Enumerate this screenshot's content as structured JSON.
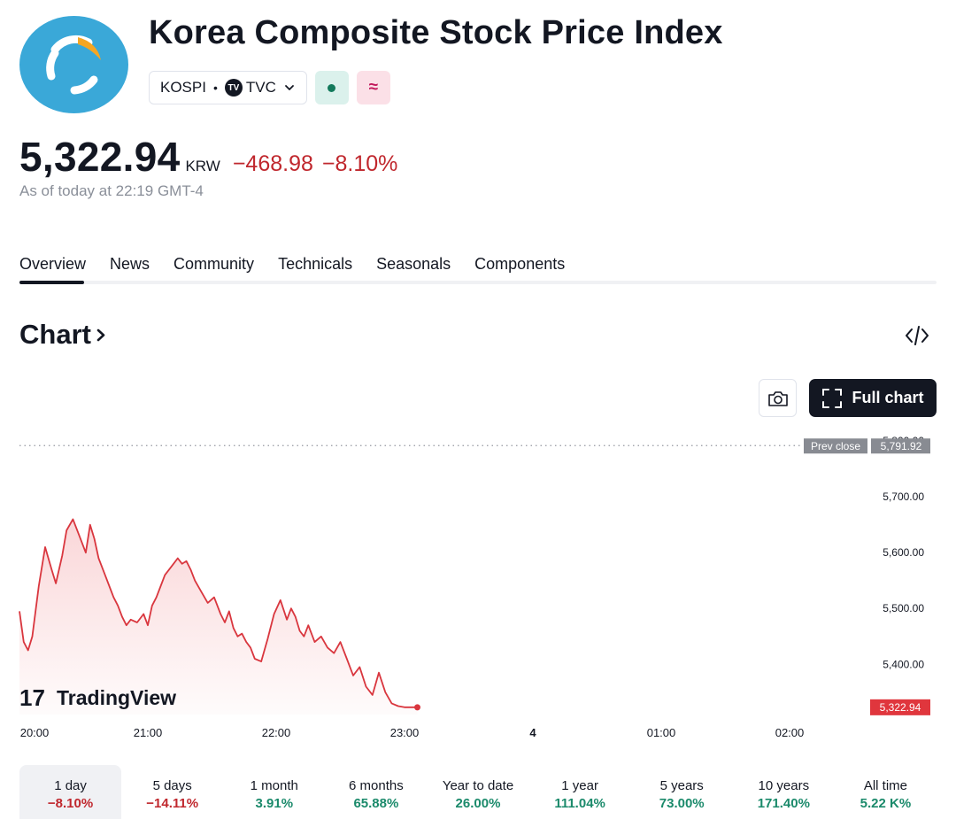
{
  "header": {
    "title": "Korea Composite Stock Price Index",
    "symbol": "KOSPI",
    "dot": "•",
    "source": "TVC",
    "tv_badge": "TV",
    "status_pink_glyph": "≈"
  },
  "quote": {
    "price": "5,322.94",
    "currency": "KRW",
    "change": "−468.98",
    "change_pct": "−8.10%",
    "as_of": "As of today at 22:19 GMT-4"
  },
  "tabs": [
    {
      "label": "Overview",
      "active": true
    },
    {
      "label": "News"
    },
    {
      "label": "Community"
    },
    {
      "label": "Technicals"
    },
    {
      "label": "Seasonals"
    },
    {
      "label": "Components"
    }
  ],
  "chart_section": {
    "title": "Chart",
    "full_chart_label": "Full chart",
    "watermark": "TradingView",
    "watermark_mark": "17"
  },
  "colors": {
    "down": "#c0272d",
    "up": "#1b8a6b",
    "line": "#d9363e",
    "logo": "#3aa8d8",
    "logo_accent": "#f5a623"
  },
  "chart_data": {
    "type": "area",
    "xlabel": "",
    "ylabel": "",
    "x_ticks": [
      "20:00",
      "21:00",
      "22:00",
      "23:00",
      "4",
      "01:00",
      "02:00"
    ],
    "y_ticks": [
      "5,400.00",
      "5,500.00",
      "5,600.00",
      "5,700.00",
      "5,800.00"
    ],
    "ylim": [
      5310,
      5805
    ],
    "prev_close_label": "Prev close",
    "prev_close": 5791.92,
    "prev_close_text": "5,791.92",
    "last_value": 5322.94,
    "last_value_text": "5,322.94",
    "series": [
      {
        "x": [
          0,
          2,
          4,
          6,
          9,
          12,
          15,
          17,
          20,
          22,
          25,
          28,
          31,
          33,
          35,
          37,
          40,
          42,
          44,
          46,
          48,
          50,
          52,
          55,
          58,
          60,
          62,
          64,
          66,
          68,
          70,
          72,
          74,
          76,
          78,
          80,
          82,
          85,
          88,
          91,
          94,
          96,
          98,
          100,
          102,
          104,
          106,
          108,
          110,
          113,
          116,
          119,
          122,
          125,
          127,
          129,
          131,
          133,
          135,
          138,
          141,
          144,
          147,
          150,
          153,
          156,
          159,
          162,
          165,
          168,
          171,
          174,
          177,
          180,
          183,
          186
        ],
        "values": [
          5495,
          5440,
          5425,
          5450,
          5540,
          5610,
          5570,
          5545,
          5595,
          5640,
          5660,
          5630,
          5600,
          5650,
          5625,
          5590,
          5560,
          5540,
          5520,
          5505,
          5485,
          5470,
          5480,
          5475,
          5490,
          5470,
          5505,
          5520,
          5540,
          5560,
          5570,
          5580,
          5590,
          5580,
          5585,
          5570,
          5550,
          5530,
          5510,
          5520,
          5490,
          5475,
          5495,
          5465,
          5450,
          5455,
          5440,
          5430,
          5410,
          5405,
          5445,
          5490,
          5515,
          5480,
          5500,
          5485,
          5460,
          5450,
          5470,
          5440,
          5450,
          5430,
          5420,
          5440,
          5410,
          5380,
          5395,
          5360,
          5345,
          5385,
          5350,
          5330,
          5325,
          5323,
          5322.94,
          5322.94
        ]
      }
    ]
  },
  "periods": [
    {
      "label": "1 day",
      "value": "−8.10%",
      "dir": "neg",
      "active": true
    },
    {
      "label": "5 days",
      "value": "−14.11%",
      "dir": "neg"
    },
    {
      "label": "1 month",
      "value": "3.91%",
      "dir": "pos"
    },
    {
      "label": "6 months",
      "value": "65.88%",
      "dir": "pos"
    },
    {
      "label": "Year to date",
      "value": "26.00%",
      "dir": "pos"
    },
    {
      "label": "1 year",
      "value": "111.04%",
      "dir": "pos"
    },
    {
      "label": "5 years",
      "value": "73.00%",
      "dir": "pos"
    },
    {
      "label": "10 years",
      "value": "171.40%",
      "dir": "pos"
    },
    {
      "label": "All time",
      "value": "5.22 K%",
      "dir": "pos"
    }
  ]
}
